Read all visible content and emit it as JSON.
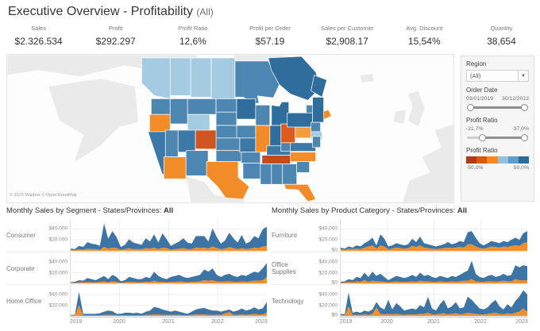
{
  "title": {
    "main": "Executive Overview - Profitability ",
    "suffix": "(All)"
  },
  "kpis": [
    {
      "label": "Sales",
      "value": "$2.326.534"
    },
    {
      "label": "Profit",
      "value": "$292.297"
    },
    {
      "label": "Profit Ratio",
      "value": "12,6%"
    },
    {
      "label": "Profit per Order",
      "value": "$57.19"
    },
    {
      "label": "Sales per Customer",
      "value": "$2,908.17"
    },
    {
      "label": "Avg. Discount",
      "value": "15,54%"
    },
    {
      "label": "Quantity",
      "value": "38,654"
    }
  ],
  "map": {
    "attribution": "© 2023 Mapbox © OpenStreetMap",
    "palette": {
      "light_blue": "#a5cbe2",
      "mid_blue": "#4d86b0",
      "mid_blue2": "#3c78a8",
      "dark_blue": "#2e6d9c",
      "orange": "#f28c28",
      "light_orange": "#f59d3d",
      "dark_orange": "#cf5420",
      "red_orange": "#c44a20",
      "ohio_orange": "#de5a1d"
    },
    "states": [
      {
        "id": "BC",
        "color": "#a5cbe2"
      },
      {
        "id": "AB",
        "color": "#a5cbe2"
      },
      {
        "id": "SK",
        "color": "#a5cbe2"
      },
      {
        "id": "MBc",
        "color": "#a5cbe2"
      },
      {
        "id": "ON",
        "color": "#4d86b0"
      },
      {
        "id": "QC",
        "color": "#2e6d9c"
      },
      {
        "id": "NL",
        "color": "#2e6d9c"
      },
      {
        "id": "NB",
        "color": "#4d86b0"
      },
      {
        "id": "NS",
        "color": "#f28c28"
      },
      {
        "id": "WA",
        "color": "#4d86b0"
      },
      {
        "id": "OR",
        "color": "#f28c28"
      },
      {
        "id": "CA",
        "color": "#3c78a8"
      },
      {
        "id": "NV",
        "color": "#4d86b0"
      },
      {
        "id": "ID",
        "color": "#4d86b0"
      },
      {
        "id": "MT",
        "color": "#4d86b0"
      },
      {
        "id": "WY",
        "color": "#a5cbe2"
      },
      {
        "id": "UT",
        "color": "#3c78a8"
      },
      {
        "id": "CO",
        "color": "#cf5420"
      },
      {
        "id": "AZ",
        "color": "#f28c28"
      },
      {
        "id": "NM",
        "color": "#4d86b0"
      },
      {
        "id": "ND",
        "color": "#4d86b0"
      },
      {
        "id": "SD",
        "color": "#4d86b0"
      },
      {
        "id": "NE",
        "color": "#4d86b0"
      },
      {
        "id": "KS",
        "color": "#4d86b0"
      },
      {
        "id": "OK",
        "color": "#4d86b0"
      },
      {
        "id": "TX",
        "color": "#f28c28"
      },
      {
        "id": "MN",
        "color": "#2e6d9c"
      },
      {
        "id": "IA",
        "color": "#4d86b0"
      },
      {
        "id": "MO",
        "color": "#3c78a8"
      },
      {
        "id": "AR",
        "color": "#4d86b0"
      },
      {
        "id": "LA",
        "color": "#4d86b0"
      },
      {
        "id": "WI",
        "color": "#4d86b0"
      },
      {
        "id": "IL",
        "color": "#f28c28"
      },
      {
        "id": "MI",
        "color": "#2e6d9c"
      },
      {
        "id": "IN",
        "color": "#2e6d9c"
      },
      {
        "id": "OH",
        "color": "#de5a1d"
      },
      {
        "id": "KY",
        "color": "#3c78a8"
      },
      {
        "id": "TN",
        "color": "#c44a20"
      },
      {
        "id": "MS",
        "color": "#4d86b0"
      },
      {
        "id": "AL",
        "color": "#4d86b0"
      },
      {
        "id": "GA",
        "color": "#4d86b0"
      },
      {
        "id": "FL",
        "color": "#f28c28"
      },
      {
        "id": "SC",
        "color": "#4d86b0"
      },
      {
        "id": "NC",
        "color": "#f28c28"
      },
      {
        "id": "VA",
        "color": "#3c78a8"
      },
      {
        "id": "WV",
        "color": "#4d86b0"
      },
      {
        "id": "PA",
        "color": "#f59d3d"
      },
      {
        "id": "NY",
        "color": "#2e6d9c"
      },
      {
        "id": "ME",
        "color": "#2e6d9c"
      },
      {
        "id": "NE1",
        "color": "#4d86b0"
      },
      {
        "id": "NE2",
        "color": "#a5cbe2"
      },
      {
        "id": "MDJ",
        "color": "#4d86b0"
      }
    ]
  },
  "sidebar": {
    "region": {
      "label": "Region",
      "value": "(All)"
    },
    "order_date": {
      "label": "Order Date",
      "start": "03/01/2019",
      "end": "30/12/2022"
    },
    "profit_ratio_filter": {
      "label": "Profit Ratio",
      "min": "-21,7%",
      "max": "37,0%"
    },
    "legend": {
      "label": "Profit Ratio",
      "min": "-50,0%",
      "max": "50,0%",
      "colors": [
        "#ad3a1e",
        "#d55816",
        "#f8871d",
        "#92c1df",
        "#5e9dca",
        "#2c6a99"
      ]
    }
  },
  "chart_data": [
    {
      "type": "area",
      "full_title": "Monthly Sales by Segment - States/Provinces: ",
      "scope_bold": "All",
      "x_ticks": [
        "2019",
        "2020",
        "2021",
        "2022",
        "2023"
      ],
      "y_ticks_labels": [
        "$40.000",
        "$20.000"
      ],
      "ylim_k": [
        0,
        55
      ],
      "unit": "USD thousands per month, Jan 2019 - Dec 2022",
      "series_colors": {
        "sales": "#3c74a6",
        "highlight": "#f28e2b"
      },
      "legend_position": "none",
      "grid": true,
      "panels": [
        {
          "label": "Consumer",
          "total_k": [
            4,
            3,
            9,
            7,
            16,
            13,
            12,
            9,
            50,
            22,
            36,
            25,
            7,
            11,
            21,
            15,
            13,
            11,
            23,
            17,
            30,
            15,
            32,
            21,
            9,
            13,
            17,
            23,
            15,
            13,
            27,
            27,
            27,
            17,
            41,
            25,
            13,
            19,
            33,
            23,
            15,
            29,
            13,
            17,
            27,
            23,
            39,
            44
          ],
          "orange_k": [
            2,
            1,
            3,
            2,
            4,
            3,
            3,
            2,
            7,
            4,
            6,
            5,
            2,
            3,
            5,
            3,
            3,
            3,
            5,
            4,
            6,
            3,
            6,
            5,
            2,
            3,
            4,
            5,
            3,
            3,
            6,
            5,
            6,
            4,
            8,
            5,
            3,
            4,
            7,
            5,
            3,
            5,
            3,
            4,
            6,
            5,
            8,
            9
          ]
        },
        {
          "label": "Corporate",
          "total_k": [
            2,
            3,
            6,
            5,
            10,
            8,
            6,
            10,
            14,
            8,
            16,
            12,
            4,
            6,
            12,
            10,
            8,
            8,
            12,
            10,
            22,
            14,
            10,
            8,
            12,
            14,
            16,
            12,
            10,
            12,
            14,
            16,
            26,
            22,
            28,
            16,
            12,
            16,
            18,
            14,
            12,
            16,
            14,
            18,
            22,
            20,
            28,
            38
          ],
          "orange_k": [
            1,
            1,
            2,
            2,
            3,
            2,
            2,
            3,
            4,
            2,
            4,
            3,
            1,
            2,
            3,
            3,
            2,
            2,
            3,
            3,
            5,
            3,
            3,
            2,
            3,
            3,
            4,
            3,
            2,
            3,
            3,
            4,
            6,
            5,
            6,
            4,
            3,
            4,
            4,
            3,
            3,
            4,
            3,
            4,
            5,
            5,
            6,
            12
          ]
        },
        {
          "label": "Home Office",
          "total_k": [
            2,
            2,
            45,
            4,
            4,
            4,
            4,
            5,
            8,
            10,
            9,
            4,
            4,
            6,
            6,
            5,
            6,
            4,
            8,
            10,
            17,
            15,
            12,
            10,
            8,
            10,
            8,
            6,
            4,
            8,
            12,
            14,
            15,
            12,
            10,
            10,
            8,
            10,
            12,
            8,
            10,
            14,
            10,
            12,
            16,
            12,
            14,
            26
          ],
          "orange_k": [
            1,
            1,
            20,
            1,
            1,
            1,
            1,
            1,
            2,
            2,
            2,
            1,
            1,
            1,
            1,
            1,
            1,
            1,
            2,
            2,
            3,
            3,
            2,
            2,
            2,
            2,
            2,
            1,
            1,
            2,
            3,
            3,
            3,
            2,
            2,
            2,
            2,
            5,
            7,
            2,
            2,
            3,
            2,
            3,
            4,
            3,
            3,
            6
          ]
        }
      ]
    },
    {
      "type": "area",
      "full_title": "Monthly Sales by Product Category - States/Provinces: ",
      "scope_bold": "All",
      "x_ticks": [
        "2019",
        "2020",
        "2021",
        "2022",
        "2023"
      ],
      "y_ticks_labels": [
        "$40.000",
        "$20.000",
        "$0"
      ],
      "ylim_k": [
        0,
        55
      ],
      "unit": "USD thousands per month, Jan 2019 - Dec 2022",
      "series_colors": {
        "sales": "#3c74a6",
        "highlight": "#f28e2b"
      },
      "legend_position": "none",
      "grid": true,
      "panels": [
        {
          "label": "Furniture",
          "total_k": [
            6,
            4,
            8,
            6,
            10,
            8,
            14,
            18,
            24,
            10,
            30,
            22,
            8,
            10,
            14,
            12,
            10,
            12,
            22,
            16,
            26,
            14,
            12,
            10,
            8,
            10,
            12,
            16,
            12,
            14,
            18,
            16,
            34,
            36,
            24,
            14,
            10,
            14,
            18,
            16,
            14,
            18,
            16,
            20,
            24,
            20,
            32,
            36
          ],
          "orange_k": [
            3,
            2,
            4,
            3,
            4,
            3,
            6,
            8,
            10,
            4,
            10,
            8,
            3,
            4,
            6,
            5,
            4,
            5,
            9,
            7,
            10,
            6,
            5,
            4,
            3,
            4,
            5,
            6,
            5,
            6,
            7,
            6,
            12,
            12,
            8,
            5,
            4,
            6,
            8,
            7,
            6,
            8,
            7,
            9,
            10,
            9,
            14,
            16
          ]
        },
        {
          "label": "Office Supplies",
          "total_k": [
            3,
            4,
            8,
            6,
            12,
            10,
            20,
            12,
            22,
            14,
            18,
            12,
            6,
            10,
            14,
            12,
            10,
            12,
            16,
            12,
            20,
            14,
            16,
            12,
            10,
            14,
            12,
            10,
            14,
            12,
            16,
            20,
            24,
            42,
            18,
            12,
            10,
            14,
            16,
            12,
            14,
            18,
            14,
            16,
            34,
            30,
            34,
            32
          ],
          "orange_k": [
            1,
            2,
            3,
            2,
            4,
            3,
            6,
            3,
            5,
            4,
            4,
            3,
            2,
            3,
            4,
            3,
            3,
            3,
            4,
            3,
            5,
            4,
            4,
            3,
            3,
            4,
            3,
            3,
            4,
            3,
            4,
            5,
            5,
            8,
            4,
            3,
            3,
            4,
            4,
            3,
            4,
            5,
            4,
            4,
            8,
            6,
            6,
            6
          ]
        },
        {
          "label": "Technology",
          "total_k": [
            4,
            3,
            44,
            6,
            8,
            6,
            10,
            8,
            12,
            26,
            16,
            12,
            30,
            12,
            24,
            18,
            10,
            12,
            14,
            12,
            20,
            16,
            36,
            14,
            10,
            22,
            30,
            14,
            18,
            26,
            14,
            16,
            36,
            30,
            22,
            14,
            12,
            16,
            24,
            30,
            18,
            12,
            22,
            16,
            28,
            36,
            48,
            40
          ],
          "orange_k": [
            2,
            1,
            18,
            2,
            2,
            2,
            3,
            2,
            4,
            16,
            4,
            3,
            4,
            3,
            4,
            3,
            2,
            3,
            3,
            3,
            4,
            4,
            6,
            3,
            3,
            4,
            5,
            3,
            4,
            5,
            3,
            4,
            6,
            5,
            4,
            3,
            3,
            4,
            5,
            6,
            4,
            3,
            5,
            4,
            6,
            8,
            14,
            8
          ]
        }
      ]
    }
  ]
}
